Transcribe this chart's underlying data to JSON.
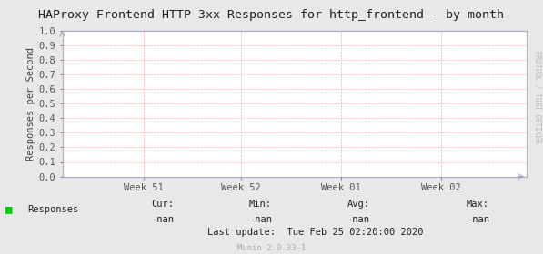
{
  "title": "HAProxy Frontend HTTP 3xx Responses for http_frontend - by month",
  "ylabel": "Responses per Second",
  "ylim": [
    0.0,
    1.0
  ],
  "yticks": [
    0.0,
    0.1,
    0.2,
    0.3,
    0.4,
    0.5,
    0.6,
    0.7,
    0.8,
    0.9,
    1.0
  ],
  "xtick_labels": [
    "Week 51",
    "Week 52",
    "Week 01",
    "Week 02"
  ],
  "xtick_positions": [
    0.175,
    0.385,
    0.6,
    0.815
  ],
  "grid_color": "#ffaaaa",
  "bg_color": "#e8e8e8",
  "plot_bg_color": "#ffffff",
  "axis_color": "#aaaacc",
  "title_fontsize": 9.5,
  "label_fontsize": 7.5,
  "tick_fontsize": 7.5,
  "stats_fontsize": 7.5,
  "legend_label": "Responses",
  "legend_color": "#00cc00",
  "cur_label": "Cur:",
  "cur_val": "-nan",
  "min_label": "Min:",
  "min_val": "-nan",
  "avg_label": "Avg:",
  "avg_val": "-nan",
  "max_label": "Max:",
  "max_val": "-nan",
  "last_update": "Last update:  Tue Feb 25 02:20:00 2020",
  "watermark": "Munin 2.0.33-1",
  "rrdtool_text": "RRDTOOL / TOBI OETIKER",
  "font_family": "DejaVu Sans Mono"
}
